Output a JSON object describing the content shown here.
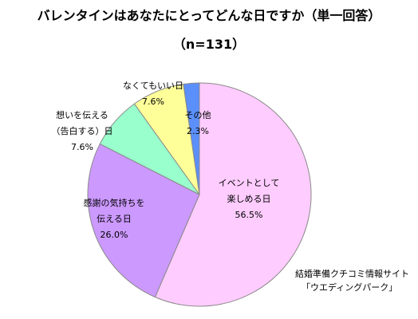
{
  "title": "バレンタインはあなたにとってどんな日ですか（単一回答）",
  "subtitle": "（n=131）",
  "source": {
    "line1": "結婚準備クチコミ情報サイト",
    "line2": "「ウエディングパーク」"
  },
  "chart_data": {
    "type": "pie",
    "slices": [
      {
        "label_lines": [
          "イベントとして",
          "楽しめる日"
        ],
        "value": 56.5,
        "value_label": "56.5%",
        "color": "#ffccff"
      },
      {
        "label_lines": [
          "感謝の気持ちを",
          "伝える日"
        ],
        "value": 26.0,
        "value_label": "26.0%",
        "color": "#cc99ff"
      },
      {
        "label_lines": [
          "想いを伝える",
          "（告白する）日"
        ],
        "value": 7.6,
        "value_label": "7.6%",
        "color": "#99ffcc"
      },
      {
        "label_lines": [
          "なくてもいい日"
        ],
        "value": 7.6,
        "value_label": "7.6%",
        "color": "#ffff99"
      },
      {
        "label_lines": [
          "その他"
        ],
        "value": 2.3,
        "value_label": "2.3%",
        "color": "#5b8ff9"
      }
    ]
  }
}
